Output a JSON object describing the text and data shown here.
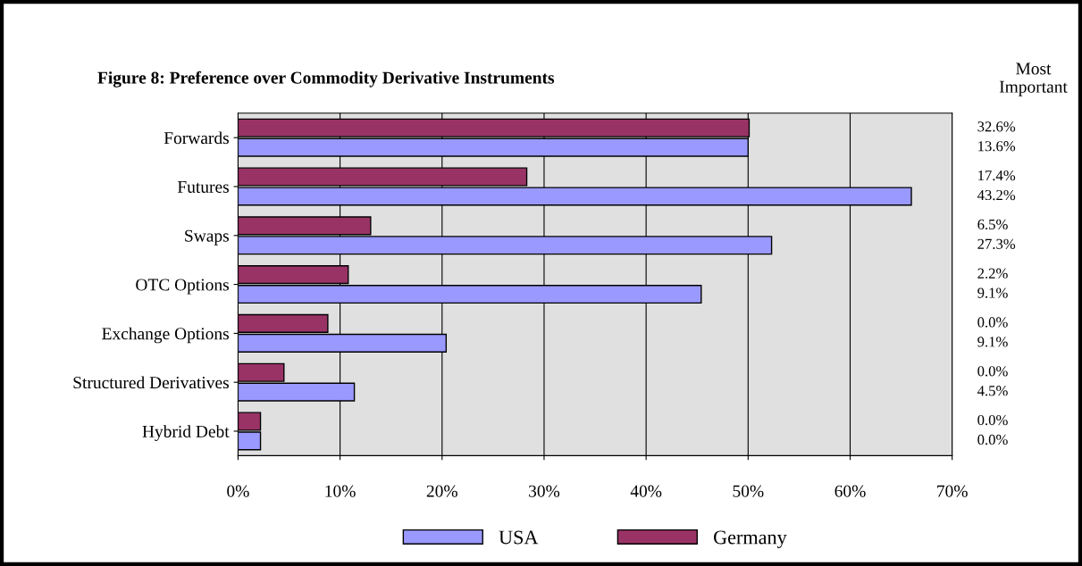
{
  "chart_data": {
    "type": "bar",
    "orientation": "horizontal",
    "title": "Figure 8: Preference over Commodity Derivative Instruments",
    "categories": [
      "Forwards",
      "Futures",
      "Swaps",
      "OTC Options",
      "Exchange Options",
      "Structured Derivatives",
      "Hybrid Debt"
    ],
    "series": [
      {
        "name": "Germany",
        "color": "#993366",
        "values": [
          50.1,
          28.3,
          13.0,
          10.8,
          8.8,
          4.5,
          2.2
        ]
      },
      {
        "name": "USA",
        "color": "#9999ff",
        "values": [
          50.0,
          66.0,
          52.3,
          45.4,
          20.4,
          11.4,
          2.2
        ]
      }
    ],
    "xlim": [
      0,
      70
    ],
    "xticks": [
      {
        "value": 0,
        "label": "0%"
      },
      {
        "value": 10,
        "label": "10%"
      },
      {
        "value": 20,
        "label": "20%"
      },
      {
        "value": 30,
        "label": "30%"
      },
      {
        "value": 40,
        "label": "40%"
      },
      {
        "value": 50,
        "label": "50%"
      },
      {
        "value": 60,
        "label": "60%"
      },
      {
        "value": 70,
        "label": "70%"
      }
    ],
    "grid": "x",
    "legend": "bottom",
    "annotations": [
      "Most\nImportant",
      "32.6%",
      "13.6%",
      "17.4%",
      "43.2%",
      "6.5%",
      "27.3%",
      "2.2%",
      "9.1%",
      "0.0%",
      "9.1%",
      "0.0%",
      "4.5%",
      "0.0%",
      "0.0%"
    ]
  }
}
